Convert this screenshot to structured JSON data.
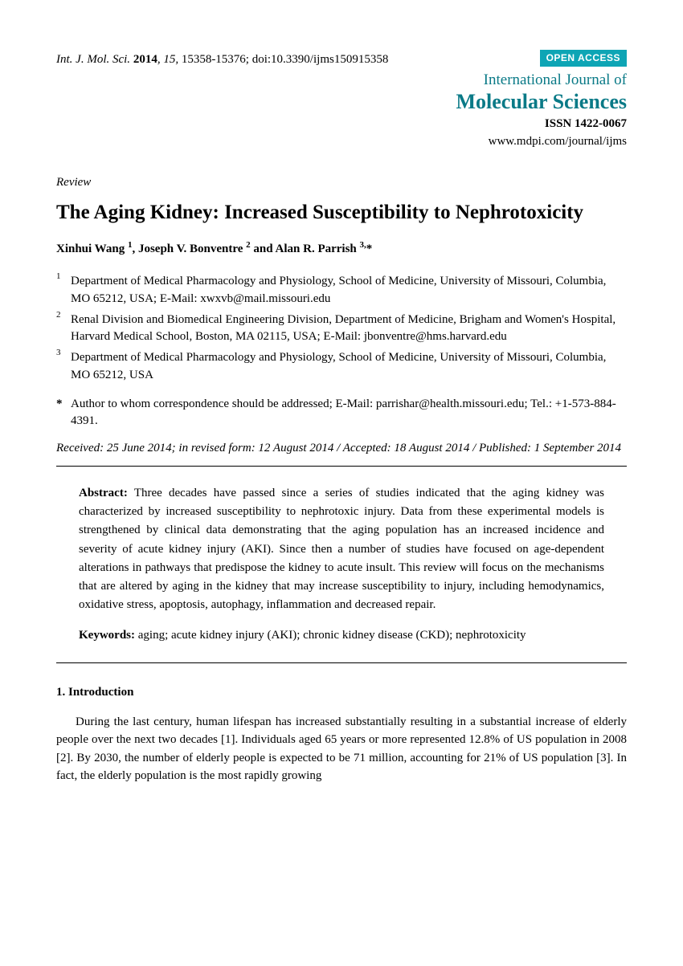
{
  "header": {
    "citation_journal": "Int. J. Mol. Sci.",
    "citation_year": "2014",
    "citation_vol": "15",
    "citation_pages": "15358-15376; doi:10.3390/ijms150915358",
    "open_access": "OPEN ACCESS",
    "journal_line1": "International Journal of",
    "journal_line2": "Molecular Sciences",
    "issn": "ISSN 1422-0067",
    "url": "www.mdpi.com/journal/ijms"
  },
  "article_type": "Review",
  "title": "The Aging Kidney: Increased Susceptibility to Nephrotoxicity",
  "authors_html": "Xinhui Wang <sup>1</sup>, Joseph V. Bonventre <sup>2</sup> and Alan R. Parrish <sup>3,</sup>*",
  "affiliations": [
    {
      "num": "1",
      "text": "Department of Medical Pharmacology and Physiology, School of Medicine, University of Missouri, Columbia, MO 65212, USA; E-Mail: xwxvb@mail.missouri.edu"
    },
    {
      "num": "2",
      "text": "Renal Division and Biomedical Engineering Division, Department of Medicine, Brigham and Women's Hospital, Harvard Medical School, Boston, MA 02115, USA; E-Mail: jbonventre@hms.harvard.edu"
    },
    {
      "num": "3",
      "text": "Department of Medical Pharmacology and Physiology, School of Medicine, University of Missouri, Columbia, MO 65212, USA"
    }
  ],
  "correspondence": "Author to whom correspondence should be addressed; E-Mail: parrishar@health.missouri.edu; Tel.: +1-573-884-4391.",
  "dates": "Received: 25 June 2014; in revised form: 12 August 2014 / Accepted: 18 August 2014 / Published: 1 September 2014",
  "abstract_label": "Abstract:",
  "abstract": "Three decades have passed since a series of studies indicated that the aging kidney was characterized by increased susceptibility to nephrotoxic injury. Data from these experimental models is strengthened by clinical data demonstrating that the aging population has an increased incidence and severity of acute kidney injury (AKI). Since then a number of studies have focused on age-dependent alterations in pathways that predispose the kidney to acute insult. This review will focus on the mechanisms that are altered by aging in the kidney that may increase susceptibility to injury, including hemodynamics, oxidative stress, apoptosis, autophagy, inflammation and decreased repair.",
  "keywords_label": "Keywords:",
  "keywords": "aging; acute kidney injury (AKI); chronic kidney disease (CKD); nephrotoxicity",
  "section1_heading": "1. Introduction",
  "section1_body": "During the last century, human lifespan has increased substantially resulting in a substantial increase of elderly people over the next two decades [1]. Individuals aged 65 years or more represented 12.8% of US population in 2008 [2]. By 2030, the number of elderly people is expected to be 71 million, accounting for 21% of US population [3]. In fact, the elderly population is the most rapidly growing"
}
